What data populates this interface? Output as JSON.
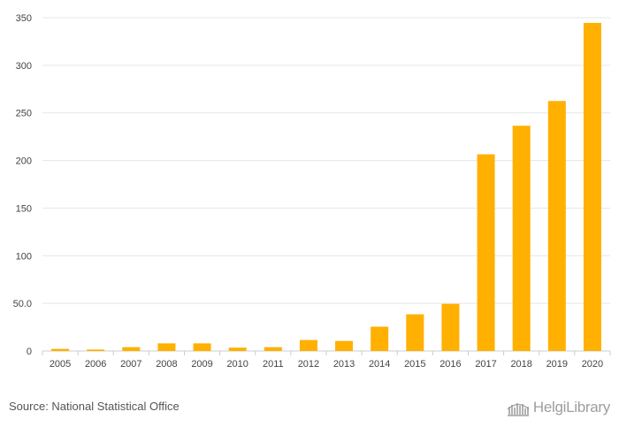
{
  "chart_data": {
    "type": "bar",
    "title": "",
    "xlabel": "",
    "ylabel": "",
    "categories": [
      "2005",
      "2006",
      "2007",
      "2008",
      "2009",
      "2010",
      "2011",
      "2012",
      "2013",
      "2014",
      "2015",
      "2016",
      "2017",
      "2018",
      "2019",
      "2020"
    ],
    "values": [
      2.2,
      1.5,
      4.0,
      8.0,
      8.0,
      3.5,
      4.0,
      11.5,
      10.5,
      25.5,
      38.5,
      49.5,
      206.5,
      236.5,
      262.5,
      344.5
    ],
    "ylim": [
      0,
      350
    ],
    "yticks": [
      0,
      50,
      100,
      150,
      200,
      250,
      300,
      350
    ],
    "ytick_labels": [
      "0",
      "50.0",
      "100",
      "150",
      "200",
      "250",
      "300",
      "350"
    ],
    "grid": true,
    "bar_color": "#FFB000",
    "grid_color": "#e6e6e6"
  },
  "footer": {
    "source": "Source: National Statistical Office",
    "brand": "HelgiLibrary",
    "brand_icon": "library-building-icon"
  }
}
